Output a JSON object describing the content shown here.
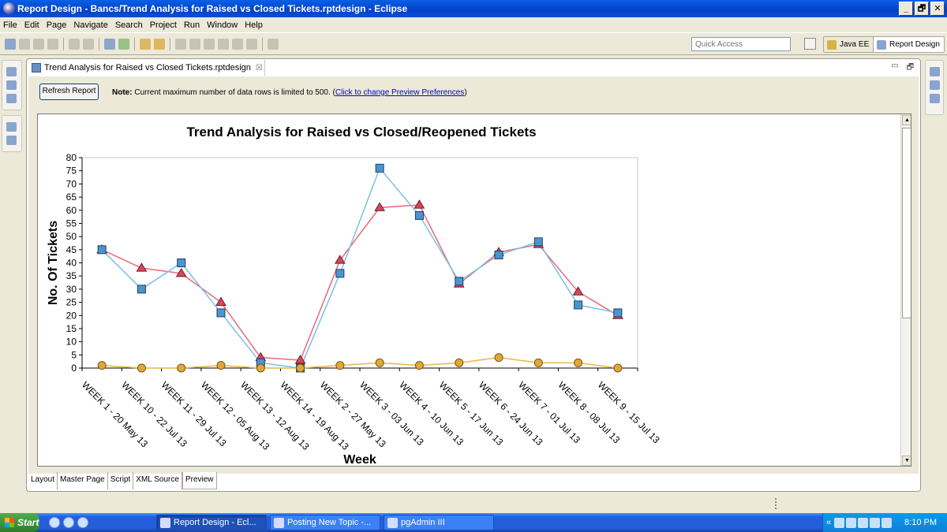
{
  "window": {
    "title": "Report Design - Bancs/Trend Analysis for Raised vs Closed Tickets.rptdesign - Eclipse",
    "buttons": [
      "_",
      "🗗",
      "✕"
    ]
  },
  "menu": [
    "File",
    "Edit",
    "Page",
    "Navigate",
    "Search",
    "Project",
    "Run",
    "Window",
    "Help"
  ],
  "toolbar": {
    "quick_access_placeholder": "Quick Access",
    "perspectives": [
      {
        "label": "Java EE",
        "active": false
      },
      {
        "label": "Report Design",
        "active": true
      }
    ]
  },
  "editor": {
    "tab_title": "Trend Analysis for Raised vs Closed Tickets.rptdesign",
    "close_glyph": "☒",
    "refresh_label": "Refresh Report",
    "note_label": "Note:",
    "note_text": " Current maximum number of data rows is limited to 500. (",
    "note_link": "Click to change Preview Preferences",
    "note_suffix": ")",
    "bottom_tabs": [
      "Layout",
      "Master Page",
      "Script",
      "XML Source",
      "Preview"
    ],
    "active_bottom_tab": "Preview"
  },
  "chart_data": {
    "type": "line",
    "title": "Trend Analysis for Raised vs Closed/Reopened Tickets",
    "xlabel": "Week",
    "ylabel": "No. Of Tickets",
    "ylim": [
      0,
      80
    ],
    "yticks": [
      0,
      5,
      10,
      15,
      20,
      25,
      30,
      35,
      40,
      45,
      50,
      55,
      60,
      65,
      70,
      75,
      80
    ],
    "grid": false,
    "legend": "none",
    "categories": [
      "WEEK 1 - 20 May 13",
      "WEEK 10 - 22 Jul 13",
      "WEEK 11 - 29 Jul 13",
      "WEEK 12 - 05 Aug 13",
      "WEEK 13 - 12 Aug 13",
      "WEEK 14 - 19 Aug 13",
      "WEEK 2 - 27 May 13",
      "WEEK 3 - 03 Jun 13",
      "WEEK 4 - 10 Jun 13",
      "WEEK 5 - 17 Jun 13",
      "WEEK 6 - 24 Jun 13",
      "WEEK 7 - 01 Jul 13",
      "WEEK 8 - 08 Jul 13",
      "WEEK 9 - 15 Jul 13"
    ],
    "series": [
      {
        "marker": "triangle",
        "color": "#e86a7a",
        "fill": "#d6475d",
        "values": [
          45,
          38,
          36,
          25,
          4,
          3,
          41,
          61,
          62,
          32,
          44,
          47,
          29,
          20
        ]
      },
      {
        "marker": "square",
        "color": "#7bbfe6",
        "fill": "#4a95cf",
        "values": [
          45,
          30,
          40,
          21,
          2,
          0,
          36,
          76,
          58,
          33,
          43,
          48,
          24,
          21
        ]
      },
      {
        "marker": "circle",
        "color": "#e8b84a",
        "fill": "#e0a83a",
        "values": [
          1,
          0,
          0,
          1,
          0,
          0,
          1,
          2,
          1,
          2,
          4,
          2,
          2,
          0
        ]
      }
    ]
  },
  "taskbar": {
    "start_label": "Start",
    "tasks": [
      {
        "label": "Report Design - Ecl...",
        "active": true
      },
      {
        "label": "Posting New Topic -...",
        "active": false
      },
      {
        "label": "pgAdmin III",
        "active": false
      }
    ],
    "tray_chevron": "«",
    "clock": "8:10 PM"
  }
}
